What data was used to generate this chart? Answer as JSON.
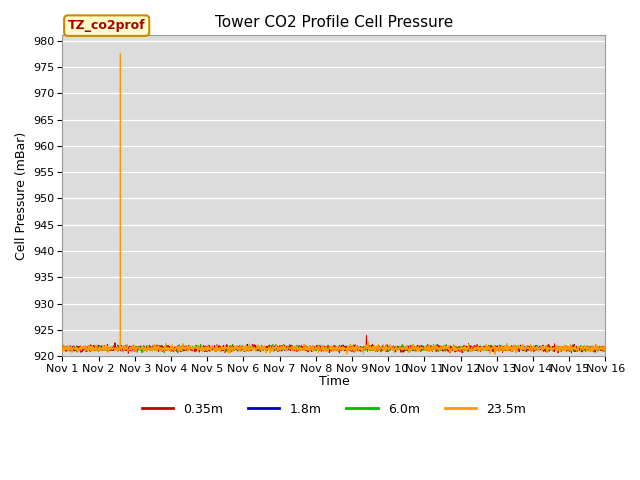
{
  "title": "Tower CO2 Profile Cell Pressure",
  "ylabel": "Cell Pressure (mBar)",
  "xlabel": "Time",
  "ylim": [
    920,
    981
  ],
  "yticks": [
    920,
    925,
    930,
    935,
    940,
    945,
    950,
    955,
    960,
    965,
    970,
    975,
    980
  ],
  "bg_color": "#dcdcdc",
  "fig_color": "#ffffff",
  "base_pressure": 921.5,
  "orange_spike_day": 1.6,
  "orange_spike_val": 977.5,
  "red_spike_day": 8.4,
  "red_spike_val": 924.0,
  "legend_label": "TZ_co2prof",
  "series": [
    {
      "label": "0.35m",
      "color": "#cc0000"
    },
    {
      "label": "1.8m",
      "color": "#0000cc"
    },
    {
      "label": "6.0m",
      "color": "#00bb00"
    },
    {
      "label": "23.5m",
      "color": "#ff9900"
    }
  ],
  "title_fontsize": 11,
  "axis_fontsize": 9,
  "tick_fontsize": 8,
  "legend_fontsize": 9
}
